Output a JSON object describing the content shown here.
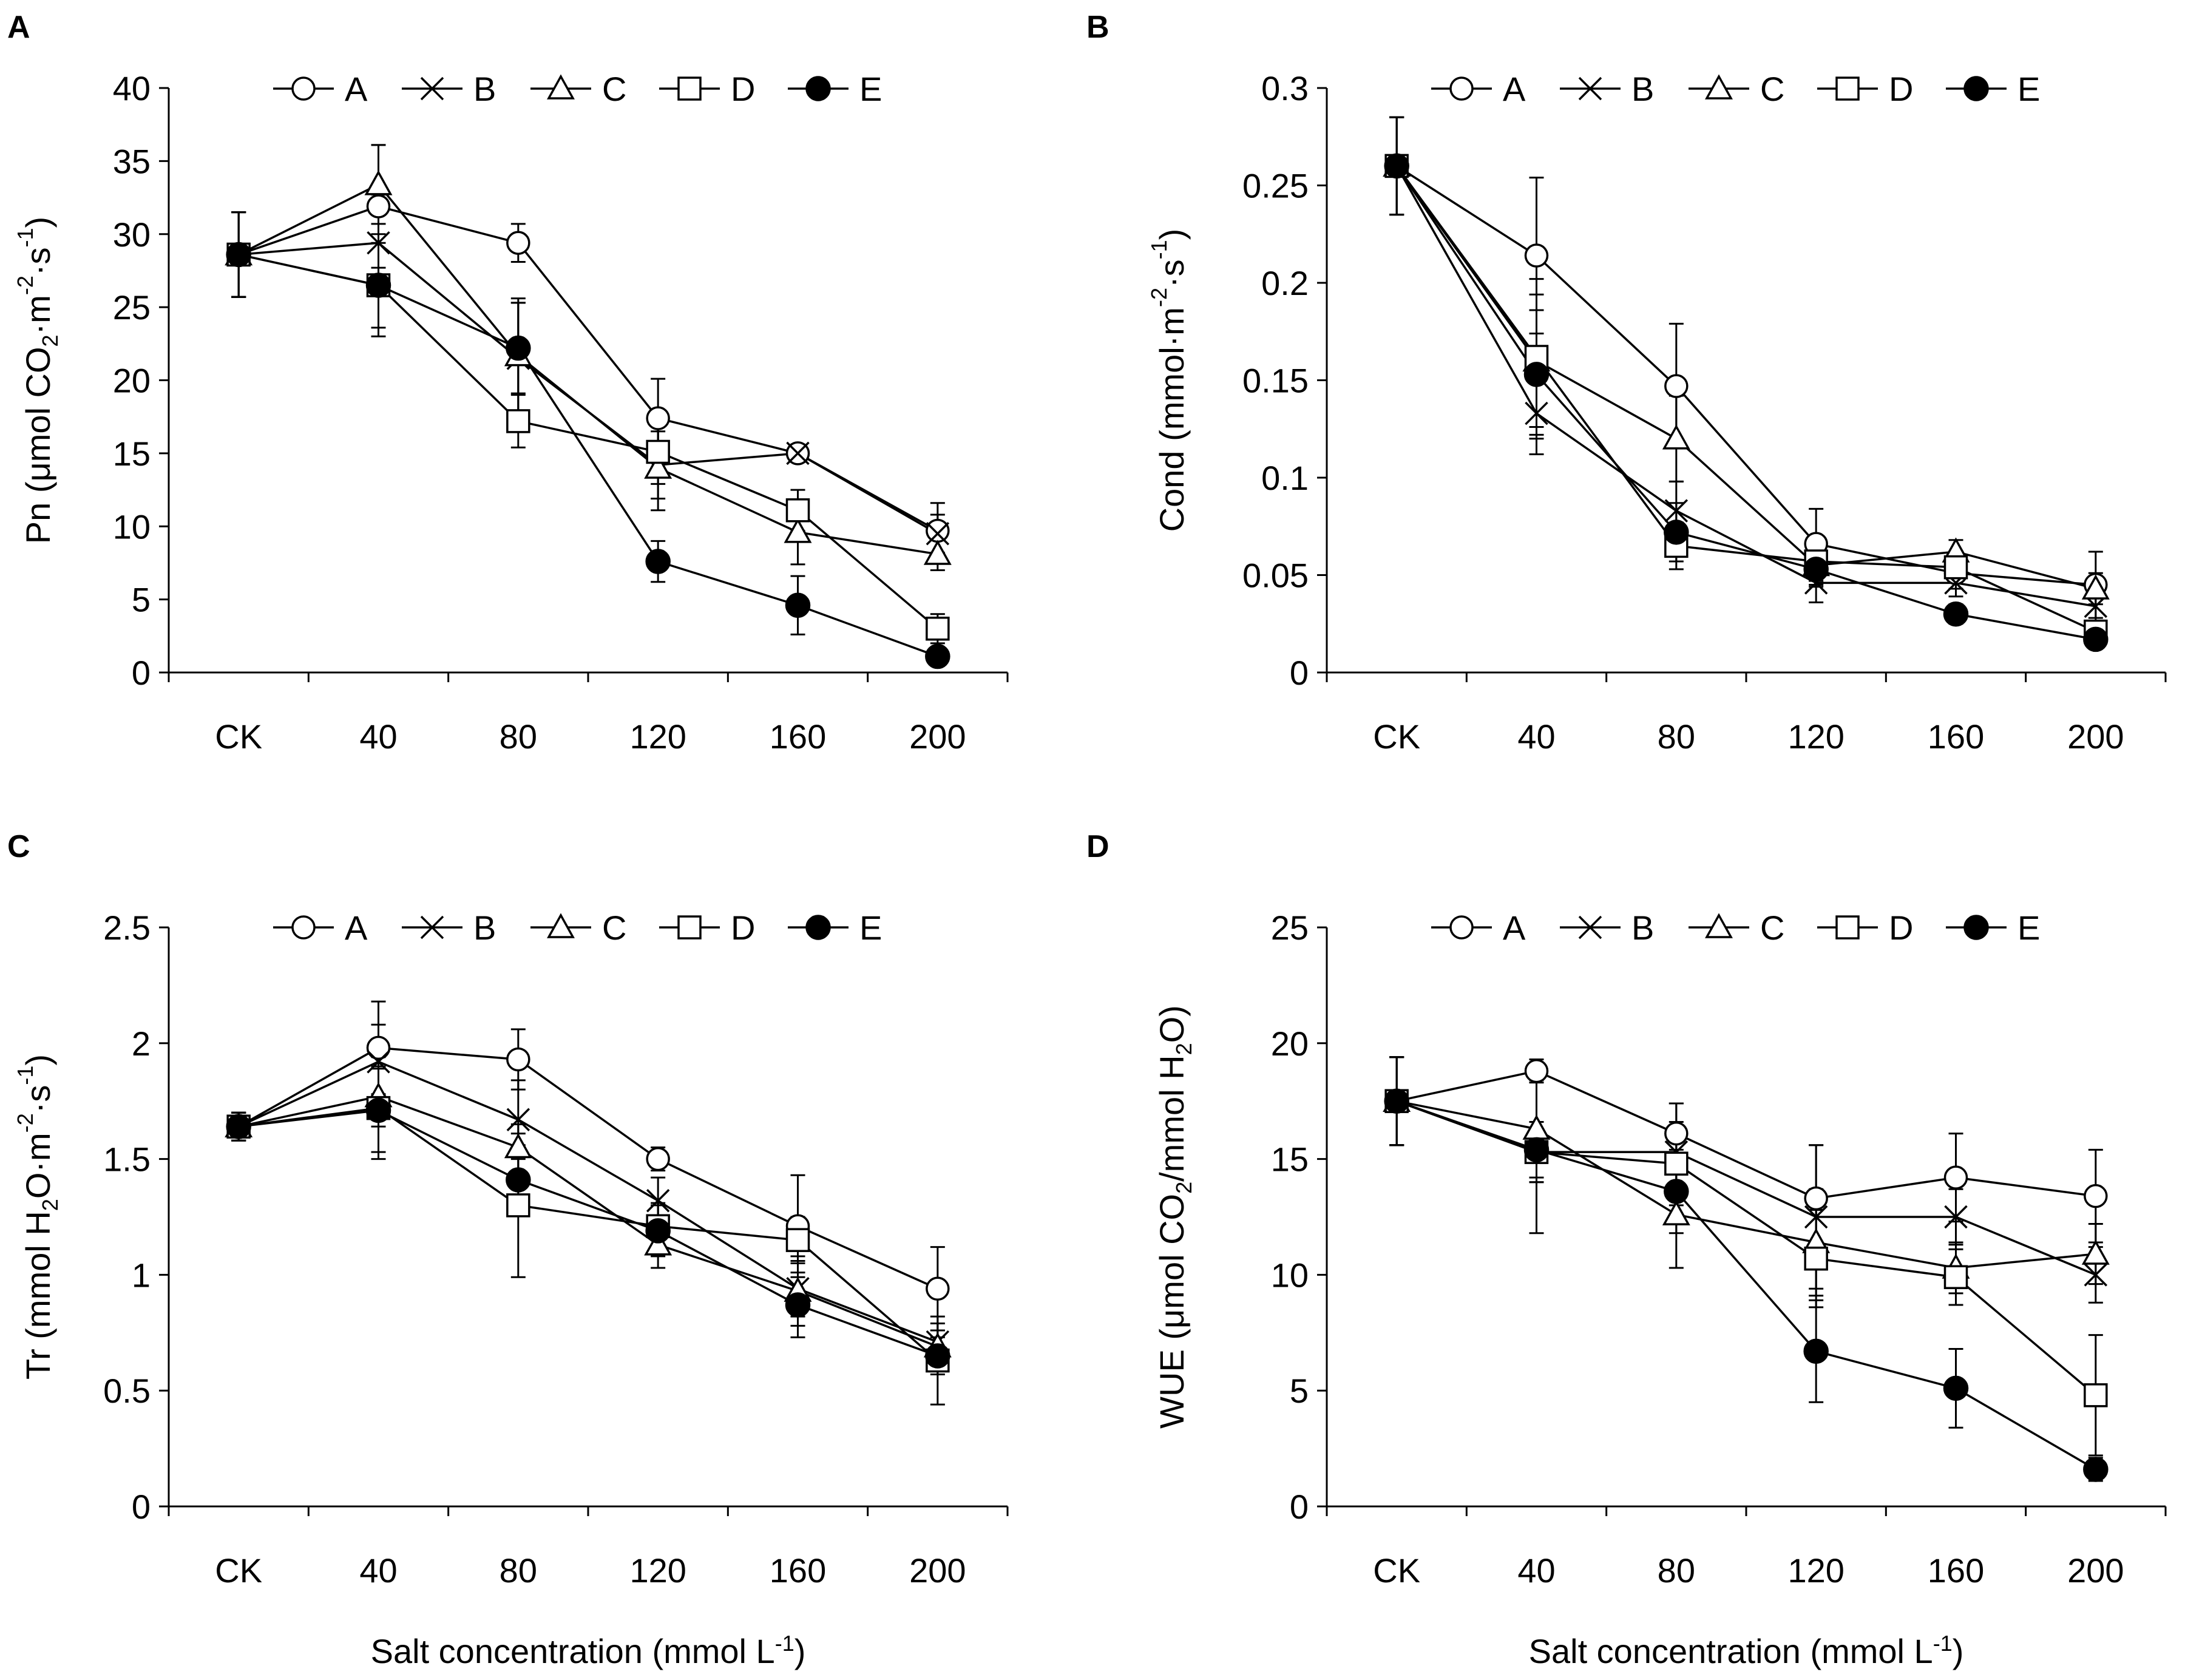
{
  "figure": {
    "xlabel_main": "Salt concentration (mmol L",
    "xlabel_sup": "-1",
    "xlabel_end": ")"
  },
  "chart_data": [
    {
      "panel": "A",
      "type": "line",
      "ylabel_parts": [
        {
          "t": "Pn (μmol CO",
          "s": "n"
        },
        {
          "t": "2",
          "s": "sub"
        },
        {
          "t": "·m",
          "s": "n"
        },
        {
          "t": "-2",
          "s": "sup"
        },
        {
          "t": "·s",
          "s": "n"
        },
        {
          "t": "-1",
          "s": "sup"
        },
        {
          "t": ")",
          "s": "n"
        }
      ],
      "categories": [
        "CK",
        "40",
        "80",
        "120",
        "160",
        "200"
      ],
      "ylim": [
        0,
        40
      ],
      "yticks": [
        0,
        5,
        10,
        15,
        20,
        25,
        30,
        35,
        40
      ],
      "ytick_labels": [
        "0",
        "5",
        "10",
        "15",
        "20",
        "25",
        "30",
        "35",
        "40"
      ],
      "series": [
        {
          "name": "A",
          "marker": "circle-open",
          "values": [
            28.6,
            31.9,
            29.4,
            17.4,
            15.0,
            9.7
          ],
          "errors": [
            2.9,
            4.2,
            1.3,
            2.7,
            0.6,
            1.9
          ]
        },
        {
          "name": "B",
          "marker": "x",
          "values": [
            28.6,
            29.4,
            21.5,
            14.2,
            15.0,
            9.5
          ],
          "errors": [
            2.9,
            3.3,
            3.8,
            2.3,
            0.6,
            1.3
          ]
        },
        {
          "name": "C",
          "marker": "triangle-open",
          "values": [
            28.6,
            33.4,
            21.7,
            14.0,
            9.6,
            8.1
          ],
          "errors": [
            2.9,
            2.7,
            3.9,
            2.9,
            2.2,
            1.1
          ]
        },
        {
          "name": "D",
          "marker": "square-open",
          "values": [
            28.6,
            26.5,
            17.2,
            15.1,
            11.1,
            3.0
          ],
          "errors": [
            2.9,
            2.9,
            1.8,
            2.2,
            1.4,
            1.0
          ]
        },
        {
          "name": "E",
          "marker": "circle-filled",
          "values": [
            28.6,
            26.5,
            22.2,
            7.6,
            4.6,
            1.1
          ],
          "errors": [
            2.9,
            3.5,
            3.1,
            1.4,
            2.0,
            0.3
          ]
        }
      ]
    },
    {
      "panel": "B",
      "type": "line",
      "ylabel_parts": [
        {
          "t": "Cond (mmol·m",
          "s": "n"
        },
        {
          "t": "-2",
          "s": "sup"
        },
        {
          "t": "·s",
          "s": "n"
        },
        {
          "t": "-1",
          "s": "sup"
        },
        {
          "t": ")",
          "s": "n"
        }
      ],
      "categories": [
        "CK",
        "40",
        "80",
        "120",
        "160",
        "200"
      ],
      "ylim": [
        0,
        0.3
      ],
      "yticks": [
        0,
        0.05,
        0.1,
        0.15,
        0.2,
        0.25,
        0.3
      ],
      "ytick_labels": [
        "0",
        "0.05",
        "0.1",
        "0.15",
        "0.2",
        "0.25",
        "0.3"
      ],
      "series": [
        {
          "name": "A",
          "marker": "circle-open",
          "values": [
            0.26,
            0.214,
            0.147,
            0.066,
            0.051,
            0.045
          ],
          "errors": [
            0.025,
            0.04,
            0.032,
            0.018,
            0.008,
            0.017
          ]
        },
        {
          "name": "B",
          "marker": "x",
          "values": [
            0.26,
            0.133,
            0.083,
            0.046,
            0.046,
            0.034
          ],
          "errors": [
            0.025,
            0.021,
            0.015,
            0.01,
            0.007,
            0.008
          ]
        },
        {
          "name": "C",
          "marker": "triangle-open",
          "values": [
            0.26,
            0.16,
            0.12,
            0.055,
            0.062,
            0.043
          ],
          "errors": [
            0.025,
            0.034,
            0.022,
            0.01,
            0.006,
            0.008
          ]
        },
        {
          "name": "D",
          "marker": "square-open",
          "values": [
            0.26,
            0.162,
            0.065,
            0.057,
            0.054,
            0.021
          ],
          "errors": [
            0.025,
            0.04,
            0.012,
            0.01,
            0.005,
            0.005
          ]
        },
        {
          "name": "E",
          "marker": "circle-filled",
          "values": [
            0.26,
            0.153,
            0.072,
            0.053,
            0.03,
            0.017
          ],
          "errors": [
            0.025,
            0.033,
            0.015,
            0.009,
            0.005,
            0.004
          ]
        }
      ]
    },
    {
      "panel": "C",
      "type": "line",
      "ylabel_parts": [
        {
          "t": "Tr (mmol H",
          "s": "n"
        },
        {
          "t": "2",
          "s": "sub"
        },
        {
          "t": "O·m",
          "s": "n"
        },
        {
          "t": "-2",
          "s": "sup"
        },
        {
          "t": "·s",
          "s": "n"
        },
        {
          "t": "-1",
          "s": "sup"
        },
        {
          "t": ")",
          "s": "n"
        }
      ],
      "categories": [
        "CK",
        "40",
        "80",
        "120",
        "160",
        "200"
      ],
      "ylim": [
        0,
        2.5
      ],
      "yticks": [
        0,
        0.5,
        1,
        1.5,
        2,
        2.5
      ],
      "ytick_labels": [
        "0",
        "0.5",
        "1",
        "1.5",
        "2",
        "2.5"
      ],
      "series": [
        {
          "name": "A",
          "marker": "circle-open",
          "values": [
            1.64,
            1.98,
            1.93,
            1.5,
            1.21,
            0.94
          ],
          "errors": [
            0.06,
            0.2,
            0.13,
            0.05,
            0.22,
            0.18
          ]
        },
        {
          "name": "B",
          "marker": "x",
          "values": [
            1.64,
            1.92,
            1.67,
            1.32,
            0.94,
            0.71
          ],
          "errors": [
            0.06,
            0.16,
            0.17,
            0.1,
            0.12,
            0.08
          ]
        },
        {
          "name": "C",
          "marker": "triangle-open",
          "values": [
            1.64,
            1.77,
            1.55,
            1.13,
            0.93,
            0.69
          ],
          "errors": [
            0.06,
            0.13,
            0.1,
            0.1,
            0.15,
            0.07
          ]
        },
        {
          "name": "D",
          "marker": "square-open",
          "values": [
            1.64,
            1.72,
            1.3,
            1.21,
            1.15,
            0.63
          ],
          "errors": [
            0.06,
            0.22,
            0.31,
            0.1,
            0.1,
            0.19
          ]
        },
        {
          "name": "E",
          "marker": "circle-filled",
          "values": [
            1.64,
            1.71,
            1.41,
            1.19,
            0.87,
            0.65
          ],
          "errors": [
            0.06,
            0.18,
            0.15,
            0.11,
            0.14,
            0.08
          ]
        }
      ]
    },
    {
      "panel": "D",
      "type": "line",
      "ylabel_parts": [
        {
          "t": "WUE (μmol CO",
          "s": "n"
        },
        {
          "t": "2",
          "s": "sub"
        },
        {
          "t": "/mmol H",
          "s": "n"
        },
        {
          "t": "2",
          "s": "sub"
        },
        {
          "t": "O)",
          "s": "n"
        }
      ],
      "categories": [
        "CK",
        "40",
        "80",
        "120",
        "160",
        "200"
      ],
      "ylim": [
        0,
        25
      ],
      "yticks": [
        0,
        5,
        10,
        15,
        20,
        25
      ],
      "ytick_labels": [
        "0",
        "5",
        "10",
        "15",
        "20",
        "25"
      ],
      "series": [
        {
          "name": "A",
          "marker": "circle-open",
          "values": [
            17.5,
            18.8,
            16.1,
            13.3,
            14.2,
            13.4
          ],
          "errors": [
            1.9,
            0.5,
            1.3,
            2.3,
            1.9,
            2.0
          ]
        },
        {
          "name": "B",
          "marker": "x",
          "values": [
            17.5,
            15.3,
            15.3,
            12.5,
            12.5,
            10.0
          ],
          "errors": [
            1.9,
            1.3,
            2.1,
            3.1,
            1.2,
            1.2
          ]
        },
        {
          "name": "C",
          "marker": "triangle-open",
          "values": [
            17.5,
            16.3,
            12.6,
            11.4,
            10.3,
            10.9
          ],
          "errors": [
            1.9,
            2.1,
            2.3,
            2.3,
            1.1,
            1.3
          ]
        },
        {
          "name": "D",
          "marker": "square-open",
          "values": [
            17.5,
            15.3,
            14.8,
            10.7,
            9.9,
            4.8
          ],
          "errors": [
            1.9,
            1.3,
            1.8,
            2.1,
            1.2,
            2.6
          ]
        },
        {
          "name": "E",
          "marker": "circle-filled",
          "values": [
            17.5,
            15.4,
            13.6,
            6.7,
            5.1,
            1.6
          ],
          "errors": [
            1.9,
            3.6,
            1.8,
            2.2,
            1.7,
            0.5
          ]
        }
      ]
    }
  ]
}
